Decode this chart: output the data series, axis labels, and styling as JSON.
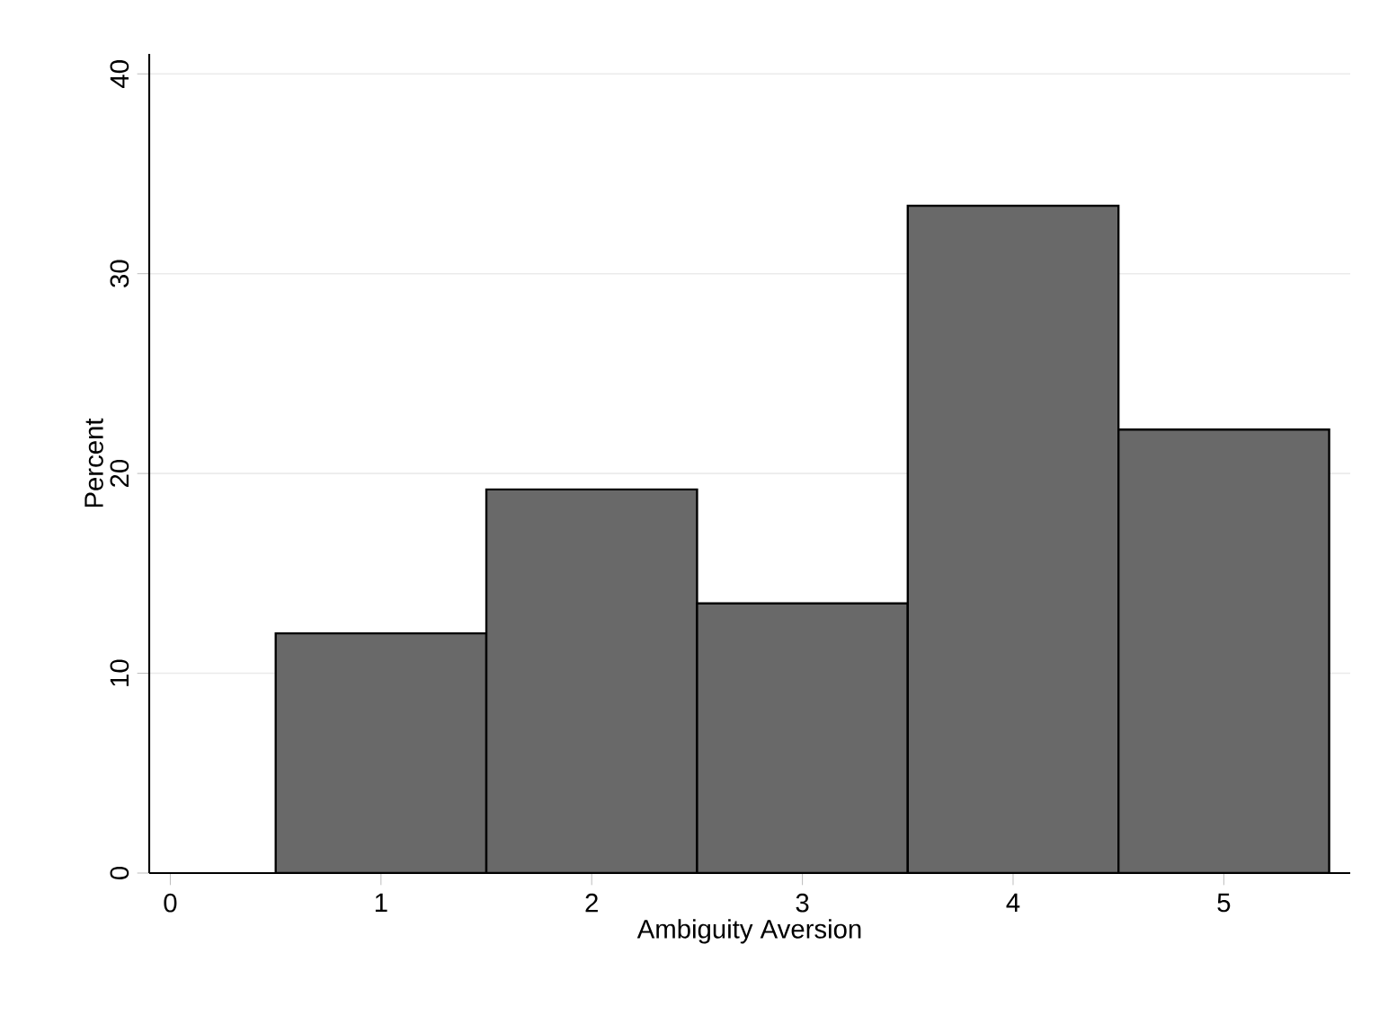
{
  "chart_data": {
    "type": "histogram",
    "xlabel": "Ambiguity Aversion",
    "ylabel": "Percent",
    "bins": [
      0.5,
      1.5,
      2.5,
      3.5,
      4.5,
      5.5
    ],
    "values": [
      12.0,
      19.2,
      13.5,
      33.4,
      22.2
    ],
    "color": "#696969",
    "xlim": [
      -0.1,
      5.6
    ],
    "ylim": [
      0,
      41
    ],
    "xticks": [
      0,
      1,
      2,
      3,
      4,
      5
    ],
    "yticks": [
      0,
      10,
      20,
      30,
      40
    ],
    "grid": "y"
  }
}
